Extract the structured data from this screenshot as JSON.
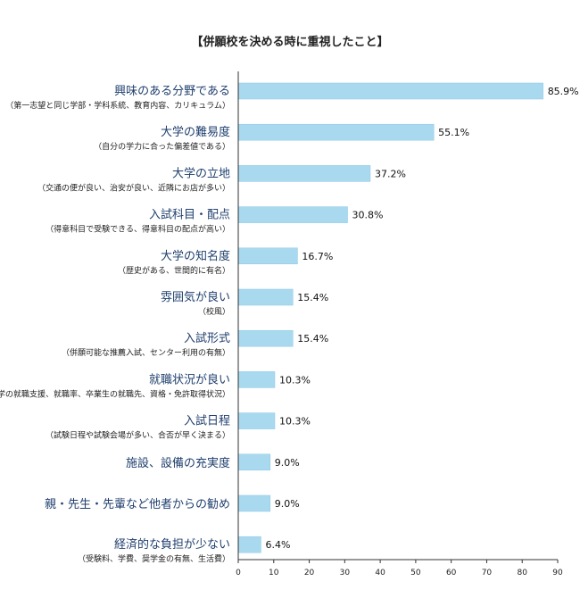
{
  "chart_data": {
    "type": "bar",
    "orientation": "horizontal",
    "title": "【併願校を決める時に重視したこと】",
    "categories": [
      {
        "label": "興味のある分野である",
        "sub": "（第一志望と同じ学部・学科系統、教育内容、カリキュラム）",
        "value": 85.9,
        "value_label": "85.9%"
      },
      {
        "label": "大学の難易度",
        "sub": "（自分の学力に合った偏差値である）",
        "value": 55.1,
        "value_label": "55.1%"
      },
      {
        "label": "大学の立地",
        "sub": "（交通の便が良い、治安が良い、近隣にお店が多い）",
        "value": 37.2,
        "value_label": "37.2%"
      },
      {
        "label": "入試科目・配点",
        "sub": "（得意科目で受験できる、得意科目の配点が高い）",
        "value": 30.8,
        "value_label": "30.8%"
      },
      {
        "label": "大学の知名度",
        "sub": "（歴史がある、世間的に有名）",
        "value": 16.7,
        "value_label": "16.7%"
      },
      {
        "label": "雰囲気が良い",
        "sub": "（校風）",
        "value": 15.4,
        "value_label": "15.4%"
      },
      {
        "label": "入試形式",
        "sub": "（併願可能な推薦入試、センター利用の有無）",
        "value": 15.4,
        "value_label": "15.4%"
      },
      {
        "label": "就職状況が良い",
        "sub": "（大学の就職支援、就職率、卒業生の就職先、資格・免許取得状況）",
        "value": 10.3,
        "value_label": "10.3%"
      },
      {
        "label": "入試日程",
        "sub": "（試験日程や試験会場が多い、合否が早く決まる）",
        "value": 10.3,
        "value_label": "10.3%"
      },
      {
        "label": "施設、設備の充実度",
        "sub": "",
        "value": 9.0,
        "value_label": "9.0%"
      },
      {
        "label": "親・先生・先輩など他者からの勧め",
        "sub": "",
        "value": 9.0,
        "value_label": "9.0%"
      },
      {
        "label": "経済的な負担が少ない",
        "sub": "（受験料、学費、奨学金の有無、生活費）",
        "value": 6.4,
        "value_label": "6.4%"
      }
    ],
    "xlim": [
      0,
      90
    ],
    "xticks": [
      "0",
      "10",
      "20",
      "30",
      "40",
      "50",
      "60",
      "70",
      "80",
      "90"
    ],
    "grid": false,
    "colors": {
      "bar": "#a9d9ef",
      "bar_stroke": "#8ec8e4",
      "axis": "#333333",
      "label": "#1f3f6e"
    }
  }
}
